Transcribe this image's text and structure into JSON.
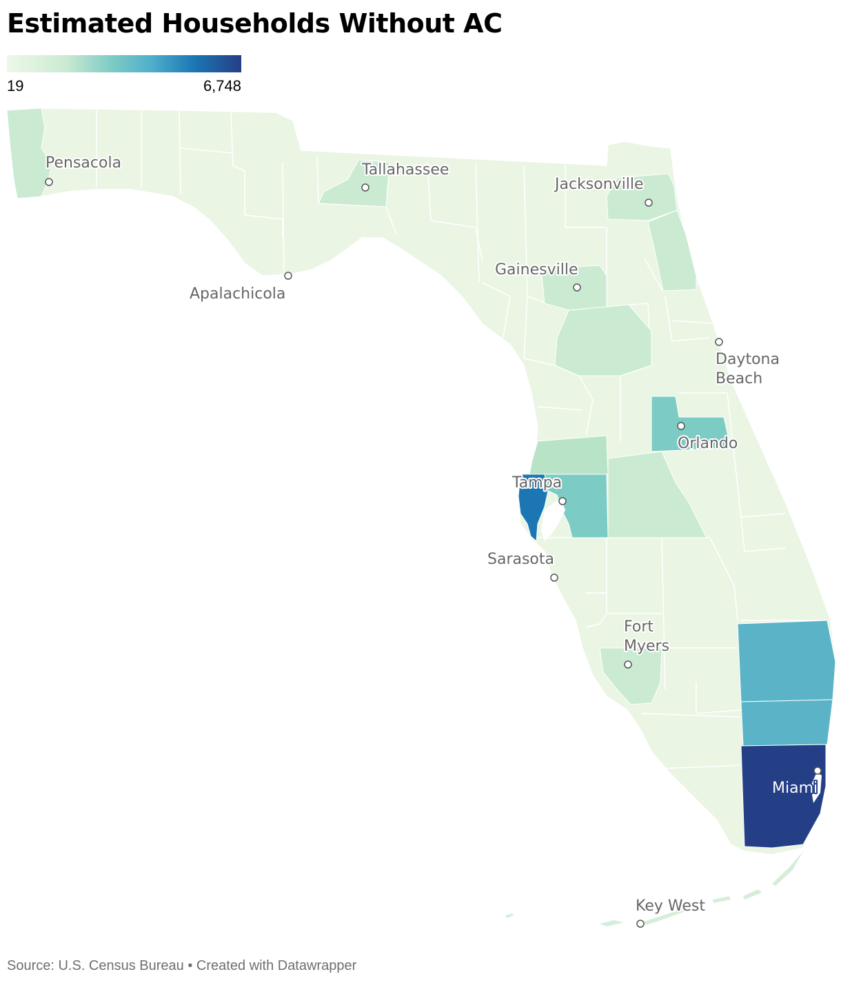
{
  "title": "Estimated Households Without AC",
  "legend": {
    "min_label": "19",
    "max_label": "6,748",
    "colors": [
      "#eef8e8",
      "#cbead2",
      "#7ccbc4",
      "#4eaecb",
      "#1b76b3",
      "#253f86"
    ]
  },
  "cities": [
    {
      "name": "Pensacola",
      "icon": "city-dot-icon"
    },
    {
      "name": "Tallahassee",
      "icon": "city-dot-icon"
    },
    {
      "name": "Jacksonville",
      "icon": "city-dot-icon"
    },
    {
      "name": "Apalachicola",
      "icon": "city-dot-icon"
    },
    {
      "name": "Gainesville",
      "icon": "city-dot-icon"
    },
    {
      "name": "Daytona",
      "name_line2": "Beach",
      "icon": "city-dot-icon"
    },
    {
      "name": "Orlando",
      "icon": "city-dot-icon"
    },
    {
      "name": "Tampa",
      "icon": "city-dot-icon"
    },
    {
      "name": "Sarasota",
      "icon": "city-dot-icon"
    },
    {
      "name": "Fort",
      "name_line2": "Myers",
      "icon": "city-dot-icon"
    },
    {
      "name": "Miami",
      "icon": "city-dot-icon"
    },
    {
      "name": "Key West",
      "icon": "city-dot-icon"
    }
  ],
  "footer": "Source: U.S. Census Bureau • Created with Datawrapper"
}
